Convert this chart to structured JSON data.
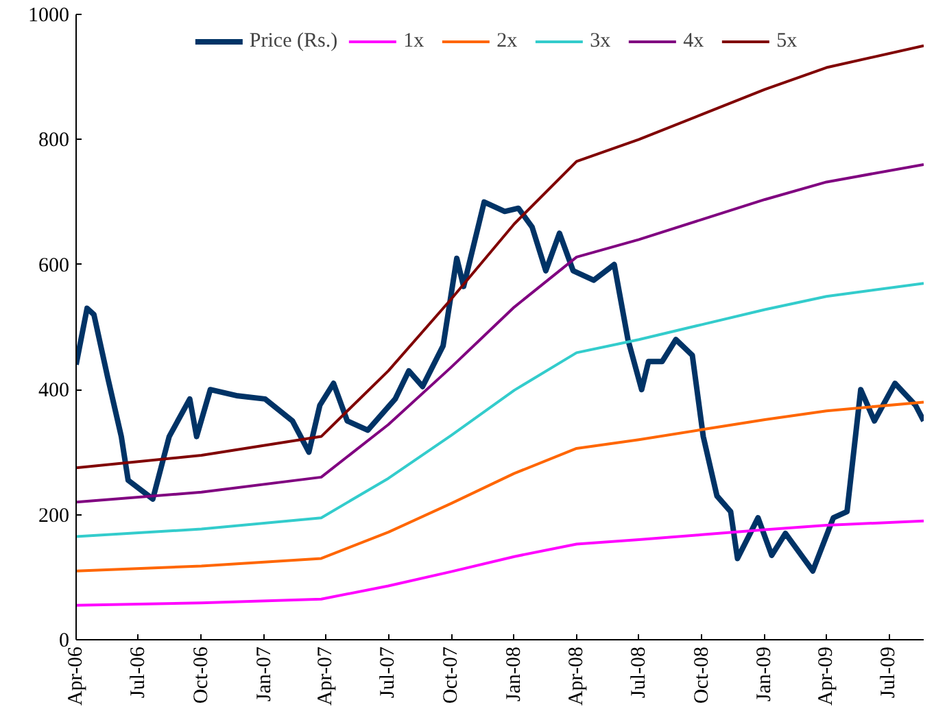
{
  "chart_data": {
    "type": "line",
    "legend": "top",
    "grid": false,
    "xlim": [
      "2006-04-01",
      "2009-08-21"
    ],
    "xticks": [
      {
        "value": "2006-04-01",
        "label": "Apr-06"
      },
      {
        "value": "2006-07-01",
        "label": "Jul-06"
      },
      {
        "value": "2006-10-01",
        "label": "Oct-06"
      },
      {
        "value": "2007-01-01",
        "label": "Jan-07"
      },
      {
        "value": "2007-04-01",
        "label": "Apr-07"
      },
      {
        "value": "2007-07-01",
        "label": "Jul-07"
      },
      {
        "value": "2007-10-01",
        "label": "Oct-07"
      },
      {
        "value": "2008-01-01",
        "label": "Jan-08"
      },
      {
        "value": "2008-04-01",
        "label": "Apr-08"
      },
      {
        "value": "2008-07-01",
        "label": "Jul-08"
      },
      {
        "value": "2008-10-01",
        "label": "Oct-08"
      },
      {
        "value": "2009-01-01",
        "label": "Jan-09"
      },
      {
        "value": "2009-04-01",
        "label": "Apr-09"
      },
      {
        "value": "2009-07-01",
        "label": "Jul-09"
      }
    ],
    "ylim": [
      0,
      1000
    ],
    "yticks": [
      0,
      200,
      400,
      600,
      800,
      1000
    ],
    "series": [
      {
        "name": "Price (Rs.)",
        "color": "#003366",
        "x": [
          "2006-04-01",
          "2006-04-17",
          "2006-04-27",
          "2006-05-17",
          "2006-06-06",
          "2006-06-16",
          "2006-07-22",
          "2006-08-15",
          "2006-09-14",
          "2006-09-24",
          "2006-10-14",
          "2006-11-23",
          "2007-01-02",
          "2007-02-11",
          "2007-03-07",
          "2007-03-23",
          "2007-04-12",
          "2007-05-02",
          "2007-06-01",
          "2007-07-11",
          "2007-07-31",
          "2007-08-20",
          "2007-09-19",
          "2007-10-09",
          "2007-10-19",
          "2007-11-18",
          "2007-12-18",
          "2008-01-07",
          "2008-01-27",
          "2008-02-16",
          "2008-03-07",
          "2008-03-27",
          "2008-04-26",
          "2008-05-26",
          "2008-06-05",
          "2008-06-15",
          "2008-07-05",
          "2008-07-15",
          "2008-08-04",
          "2008-08-24",
          "2008-09-17",
          "2008-10-03",
          "2008-10-23",
          "2008-11-12",
          "2008-11-22",
          "2008-12-22",
          "2009-01-11",
          "2009-01-31",
          "2009-03-12",
          "2009-04-11",
          "2009-05-01",
          "2009-05-21",
          "2009-06-10",
          "2009-07-10",
          "2009-08-09",
          "2009-08-21"
        ],
        "values": [
          440,
          530,
          520,
          420,
          325,
          255,
          225,
          325,
          385,
          325,
          400,
          390,
          385,
          350,
          300,
          375,
          410,
          350,
          335,
          385,
          430,
          405,
          470,
          610,
          565,
          700,
          685,
          690,
          660,
          590,
          650,
          590,
          575,
          600,
          540,
          480,
          400,
          445,
          445,
          480,
          455,
          325,
          230,
          205,
          130,
          195,
          135,
          170,
          110,
          195,
          205,
          400,
          350,
          410,
          375,
          350
        ]
      },
      {
        "name": "1x",
        "color": "#ff00ff",
        "x": [
          "2006-04-01",
          "2006-10-01",
          "2007-03-25",
          "2007-07-01",
          "2007-10-01",
          "2008-01-01",
          "2008-04-01",
          "2008-07-01",
          "2008-10-01",
          "2009-01-01",
          "2009-04-01",
          "2009-08-21"
        ],
        "values": [
          55,
          59,
          65,
          86,
          109,
          133,
          153,
          160,
          168,
          176,
          183,
          190
        ]
      },
      {
        "name": "2x",
        "color": "#ff6600",
        "x": [
          "2006-04-01",
          "2006-10-01",
          "2007-03-25",
          "2007-07-01",
          "2007-10-01",
          "2008-01-01",
          "2008-04-01",
          "2008-07-01",
          "2008-10-01",
          "2009-01-01",
          "2009-04-01",
          "2009-08-21"
        ],
        "values": [
          110,
          118,
          130,
          172,
          218,
          266,
          306,
          320,
          336,
          352,
          366,
          380
        ]
      },
      {
        "name": "3x",
        "color": "#33cccc",
        "x": [
          "2006-04-01",
          "2006-10-01",
          "2007-03-25",
          "2007-07-01",
          "2007-10-01",
          "2008-01-01",
          "2008-04-01",
          "2008-07-01",
          "2008-10-01",
          "2009-01-01",
          "2009-04-01",
          "2009-08-21"
        ],
        "values": [
          165,
          177,
          195,
          258,
          327,
          399,
          459,
          480,
          504,
          528,
          549,
          570
        ]
      },
      {
        "name": "4x",
        "color": "#800080",
        "x": [
          "2006-04-01",
          "2006-10-01",
          "2007-03-25",
          "2007-07-01",
          "2007-10-01",
          "2008-01-01",
          "2008-04-01",
          "2008-07-01",
          "2008-10-01",
          "2009-01-01",
          "2009-04-01",
          "2009-08-21"
        ],
        "values": [
          220,
          236,
          260,
          344,
          436,
          532,
          612,
          640,
          672,
          704,
          732,
          760
        ]
      },
      {
        "name": "5x",
        "color": "#800000",
        "x": [
          "2006-04-01",
          "2006-10-01",
          "2007-03-25",
          "2007-07-01",
          "2007-10-01",
          "2008-01-01",
          "2008-04-01",
          "2008-07-01",
          "2008-10-01",
          "2009-01-01",
          "2009-04-01",
          "2009-08-21"
        ],
        "values": [
          275,
          295,
          325,
          430,
          545,
          665,
          765,
          800,
          840,
          880,
          915,
          950
        ]
      }
    ]
  }
}
